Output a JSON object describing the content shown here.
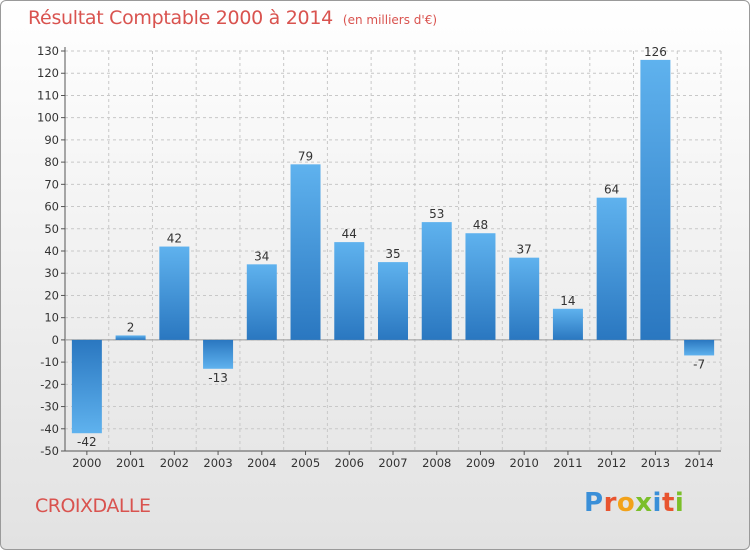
{
  "header": {
    "title": "Résultat Comptable 2000 à 2014",
    "subtitle": "(en milliers d'€)"
  },
  "footer": {
    "commune": "CROIXDALLE",
    "brand": "Proxiti",
    "brand_colors": [
      "#3a8fd8",
      "#e8542f",
      "#f2a21a",
      "#7bbf2a",
      "#3a8fd8",
      "#e8542f",
      "#7bbf2a"
    ]
  },
  "chart_data": {
    "type": "bar",
    "title": "Résultat Comptable 2000 à 2014",
    "ylabel": "en milliers d'€",
    "xlabel": "",
    "categories": [
      "2000",
      "2001",
      "2002",
      "2003",
      "2004",
      "2005",
      "2006",
      "2007",
      "2008",
      "2009",
      "2010",
      "2011",
      "2012",
      "2013",
      "2014"
    ],
    "values": [
      -42,
      2,
      42,
      -13,
      34,
      79,
      44,
      35,
      53,
      48,
      37,
      14,
      64,
      126,
      -7
    ],
    "ylim": [
      -50,
      130
    ],
    "yticks": [
      -50,
      -40,
      -30,
      -20,
      -10,
      0,
      10,
      20,
      30,
      40,
      50,
      60,
      70,
      80,
      90,
      100,
      110,
      120,
      130
    ],
    "grid": true,
    "bar_color": "#4a9de0",
    "bar_color_dark": "#2b78c2"
  }
}
